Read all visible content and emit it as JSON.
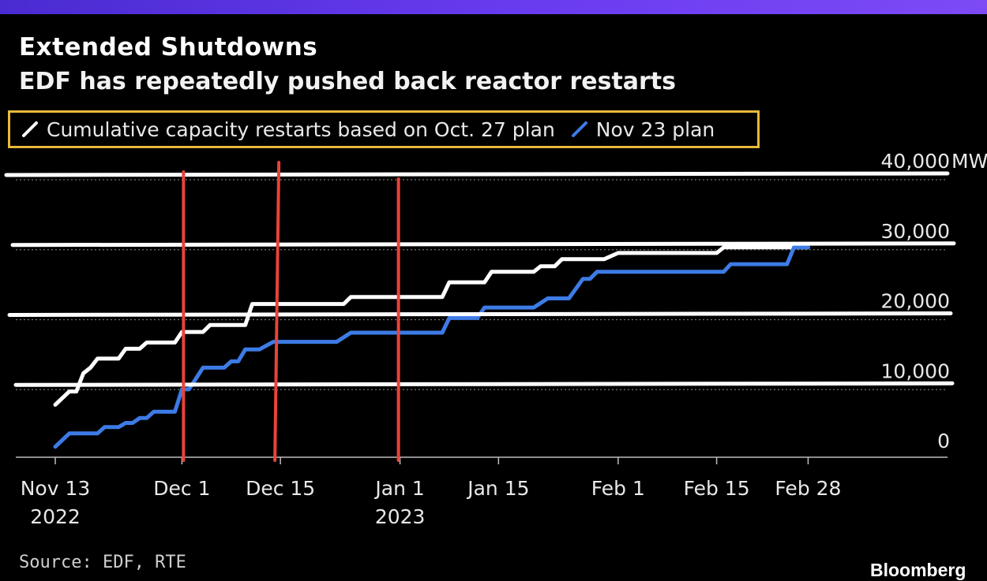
{
  "title": "Extended Shutdowns",
  "subtitle": "EDF has repeatedly pushed back reactor restarts",
  "source": "Source: EDF, RTE",
  "brand": "Bloomberg",
  "colors": {
    "series_oct": "#ffffff",
    "series_nov": "#3d7be6",
    "legend_border": "#e8b93a",
    "annotation_red": "#e8433a",
    "band": "#5b34e6"
  },
  "chart_data": {
    "type": "line",
    "title": "Extended Shutdowns",
    "subtitle": "EDF has repeatedly pushed back reactor restarts",
    "y_unit": "MW",
    "ylim": [
      0,
      40000
    ],
    "y_ticks": [
      {
        "value": 0,
        "label": "0"
      },
      {
        "value": 10000,
        "label": "10,000"
      },
      {
        "value": 20000,
        "label": "20,000"
      },
      {
        "value": 30000,
        "label": "30,000"
      },
      {
        "value": 40000,
        "label": "40,000"
      }
    ],
    "x_domain": [
      0,
      112
    ],
    "x_ticks": [
      {
        "day": 0,
        "label": "Nov 13",
        "sub": "2022"
      },
      {
        "day": 18,
        "label": "Dec 1",
        "sub": ""
      },
      {
        "day": 32,
        "label": "Dec 15",
        "sub": ""
      },
      {
        "day": 49,
        "label": "Jan 1",
        "sub": "2023"
      },
      {
        "day": 63,
        "label": "Jan 15",
        "sub": ""
      },
      {
        "day": 80,
        "label": "Feb 1",
        "sub": ""
      },
      {
        "day": 94,
        "label": "Feb 15",
        "sub": ""
      },
      {
        "day": 107,
        "label": "Feb 28",
        "sub": ""
      }
    ],
    "legend": [
      {
        "name": "Cumulative capacity restarts based on Oct. 27 plan",
        "color": "#ffffff"
      },
      {
        "name": "Nov 23 plan",
        "color": "#3d7be6"
      }
    ],
    "series": [
      {
        "name": "Cumulative capacity restarts based on Oct. 27 plan",
        "color": "#ffffff",
        "points": [
          [
            0,
            7500
          ],
          [
            2,
            9400
          ],
          [
            3,
            9400
          ],
          [
            4,
            12000
          ],
          [
            5,
            12800
          ],
          [
            6,
            14100
          ],
          [
            9,
            14100
          ],
          [
            10,
            15500
          ],
          [
            12,
            15500
          ],
          [
            13,
            16400
          ],
          [
            17,
            16400
          ],
          [
            18,
            17900
          ],
          [
            21,
            17900
          ],
          [
            22,
            18900
          ],
          [
            27,
            18900
          ],
          [
            28,
            21900
          ],
          [
            41,
            21900
          ],
          [
            42,
            22900
          ],
          [
            55,
            22900
          ],
          [
            56,
            25000
          ],
          [
            61,
            25000
          ],
          [
            62,
            26500
          ],
          [
            68,
            26500
          ],
          [
            69,
            27300
          ],
          [
            71,
            27300
          ],
          [
            72,
            28300
          ],
          [
            78,
            28300
          ],
          [
            80,
            29200
          ],
          [
            94,
            29200
          ],
          [
            95,
            30000
          ],
          [
            107,
            30000
          ]
        ]
      },
      {
        "name": "Nov 23 plan",
        "color": "#3d7be6",
        "points": [
          [
            0,
            1500
          ],
          [
            2,
            3400
          ],
          [
            6,
            3400
          ],
          [
            7,
            4300
          ],
          [
            9,
            4300
          ],
          [
            10,
            4900
          ],
          [
            11,
            4900
          ],
          [
            12,
            5600
          ],
          [
            13,
            5600
          ],
          [
            14,
            6500
          ],
          [
            17,
            6500
          ],
          [
            18,
            9700
          ],
          [
            19,
            9700
          ],
          [
            21,
            12800
          ],
          [
            24,
            12800
          ],
          [
            25,
            13700
          ],
          [
            26,
            13700
          ],
          [
            27,
            15400
          ],
          [
            29,
            15400
          ],
          [
            31,
            16500
          ],
          [
            40,
            16500
          ],
          [
            42,
            17800
          ],
          [
            55,
            17800
          ],
          [
            56,
            19900
          ],
          [
            60,
            19900
          ],
          [
            61,
            21400
          ],
          [
            68,
            21400
          ],
          [
            70,
            22700
          ],
          [
            73,
            22700
          ],
          [
            75,
            25500
          ],
          [
            76,
            25500
          ],
          [
            77,
            26500
          ],
          [
            95,
            26500
          ],
          [
            96,
            27600
          ],
          [
            104,
            27600
          ],
          [
            105,
            30000
          ],
          [
            107,
            30000
          ]
        ]
      }
    ],
    "annotations": {
      "vertical_markers": [
        18,
        32,
        49
      ],
      "horizontal_markers": [
        10000,
        20000,
        30000,
        40000
      ],
      "marker_color": "#e8433a"
    }
  }
}
